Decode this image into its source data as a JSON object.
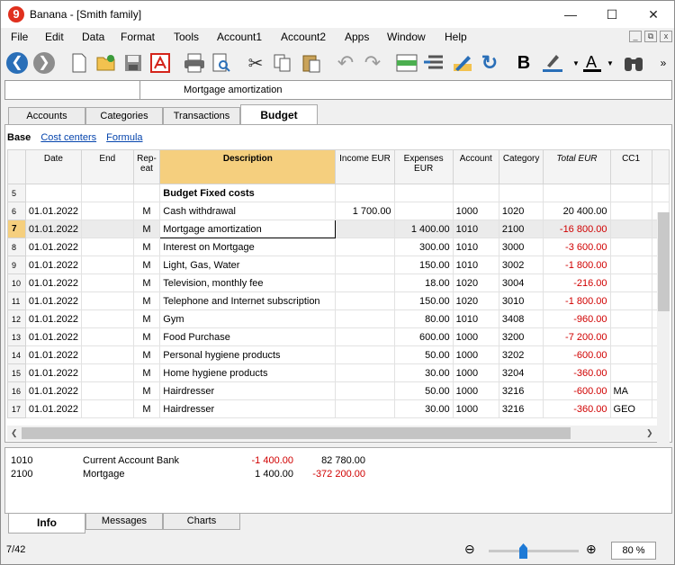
{
  "window": {
    "title": "Banana - [Smith family]",
    "logo": "9",
    "minimize": "—",
    "maximize": "☐",
    "close": "✕"
  },
  "menu": [
    "File",
    "Edit",
    "Data",
    "Format",
    "Tools",
    "Account1",
    "Account2",
    "Apps",
    "Window",
    "Help"
  ],
  "mdi": {
    "min": "_",
    "restore": "⧉",
    "close": "x"
  },
  "namebar": {
    "text": "Mortgage amortization"
  },
  "tabs": [
    "Accounts",
    "Categories",
    "Transactions",
    "Budget"
  ],
  "views": {
    "base": "Base",
    "cost_centers": "Cost centers",
    "formula": "Formula"
  },
  "columns": [
    "Date",
    "End",
    "Rep-\neat",
    "Description",
    "Income EUR",
    "Expenses EUR",
    "Account",
    "Category",
    "Total EUR",
    "CC1"
  ],
  "rows": [
    {
      "n": "5",
      "date": "",
      "end": "",
      "rep": "",
      "desc": "Budget Fixed costs",
      "inc": "",
      "exp": "",
      "acc": "",
      "cat": "",
      "tot": "",
      "cc1": ""
    },
    {
      "n": "6",
      "date": "01.01.2022",
      "end": "",
      "rep": "M",
      "desc": "Cash withdrawal",
      "inc": "1 700.00",
      "exp": "",
      "acc": "1000",
      "cat": "1020",
      "tot": "20 400.00",
      "cc1": ""
    },
    {
      "n": "7",
      "date": "01.01.2022",
      "end": "",
      "rep": "M",
      "desc": "Mortgage amortization",
      "inc": "",
      "exp": "1 400.00",
      "acc": "1010",
      "cat": "2100",
      "tot": "-16 800.00",
      "cc1": ""
    },
    {
      "n": "8",
      "date": "01.01.2022",
      "end": "",
      "rep": "M",
      "desc": "Interest on Mortgage",
      "inc": "",
      "exp": "300.00",
      "acc": "1010",
      "cat": "3000",
      "tot": "-3 600.00",
      "cc1": ""
    },
    {
      "n": "9",
      "date": "01.01.2022",
      "end": "",
      "rep": "M",
      "desc": "Light, Gas, Water",
      "inc": "",
      "exp": "150.00",
      "acc": "1010",
      "cat": "3002",
      "tot": "-1 800.00",
      "cc1": ""
    },
    {
      "n": "10",
      "date": "01.01.2022",
      "end": "",
      "rep": "M",
      "desc": "Television, monthly fee",
      "inc": "",
      "exp": "18.00",
      "acc": "1020",
      "cat": "3004",
      "tot": "-216.00",
      "cc1": ""
    },
    {
      "n": "11",
      "date": "01.01.2022",
      "end": "",
      "rep": "M",
      "desc": "Telephone and Internet subscription",
      "inc": "",
      "exp": "150.00",
      "acc": "1020",
      "cat": "3010",
      "tot": "-1 800.00",
      "cc1": ""
    },
    {
      "n": "12",
      "date": "01.01.2022",
      "end": "",
      "rep": "M",
      "desc": "Gym",
      "inc": "",
      "exp": "80.00",
      "acc": "1010",
      "cat": "3408",
      "tot": "-960.00",
      "cc1": ""
    },
    {
      "n": "13",
      "date": "01.01.2022",
      "end": "",
      "rep": "M",
      "desc": "Food Purchase",
      "inc": "",
      "exp": "600.00",
      "acc": "1000",
      "cat": "3200",
      "tot": "-7 200.00",
      "cc1": ""
    },
    {
      "n": "14",
      "date": "01.01.2022",
      "end": "",
      "rep": "M",
      "desc": "Personal hygiene products",
      "inc": "",
      "exp": "50.00",
      "acc": "1000",
      "cat": "3202",
      "tot": "-600.00",
      "cc1": ""
    },
    {
      "n": "15",
      "date": "01.01.2022",
      "end": "",
      "rep": "M",
      "desc": "Home hygiene products",
      "inc": "",
      "exp": "30.00",
      "acc": "1000",
      "cat": "3204",
      "tot": "-360.00",
      "cc1": ""
    },
    {
      "n": "16",
      "date": "01.01.2022",
      "end": "",
      "rep": "M",
      "desc": "Hairdresser",
      "inc": "",
      "exp": "50.00",
      "acc": "1000",
      "cat": "3216",
      "tot": "-600.00",
      "cc1": "MA"
    },
    {
      "n": "17",
      "date": "01.01.2022",
      "end": "",
      "rep": "M",
      "desc": "Hairdresser",
      "inc": "",
      "exp": "30.00",
      "acc": "1000",
      "cat": "3216",
      "tot": "-360.00",
      "cc1": "GEO"
    }
  ],
  "info": [
    {
      "acc": "1010",
      "name": "Current Account Bank",
      "a": "-1 400.00",
      "b": "82 780.00"
    },
    {
      "acc": "2100",
      "name": "Mortgage",
      "a": "1 400.00",
      "b": "-372 200.00"
    }
  ],
  "bottom_tabs": [
    "Info",
    "Messages",
    "Charts"
  ],
  "status": {
    "position": "7/42",
    "zoom": "80 %"
  },
  "colors": {
    "accent": "#f5cf7e",
    "negative": "#d00000",
    "link": "#0645ad"
  }
}
